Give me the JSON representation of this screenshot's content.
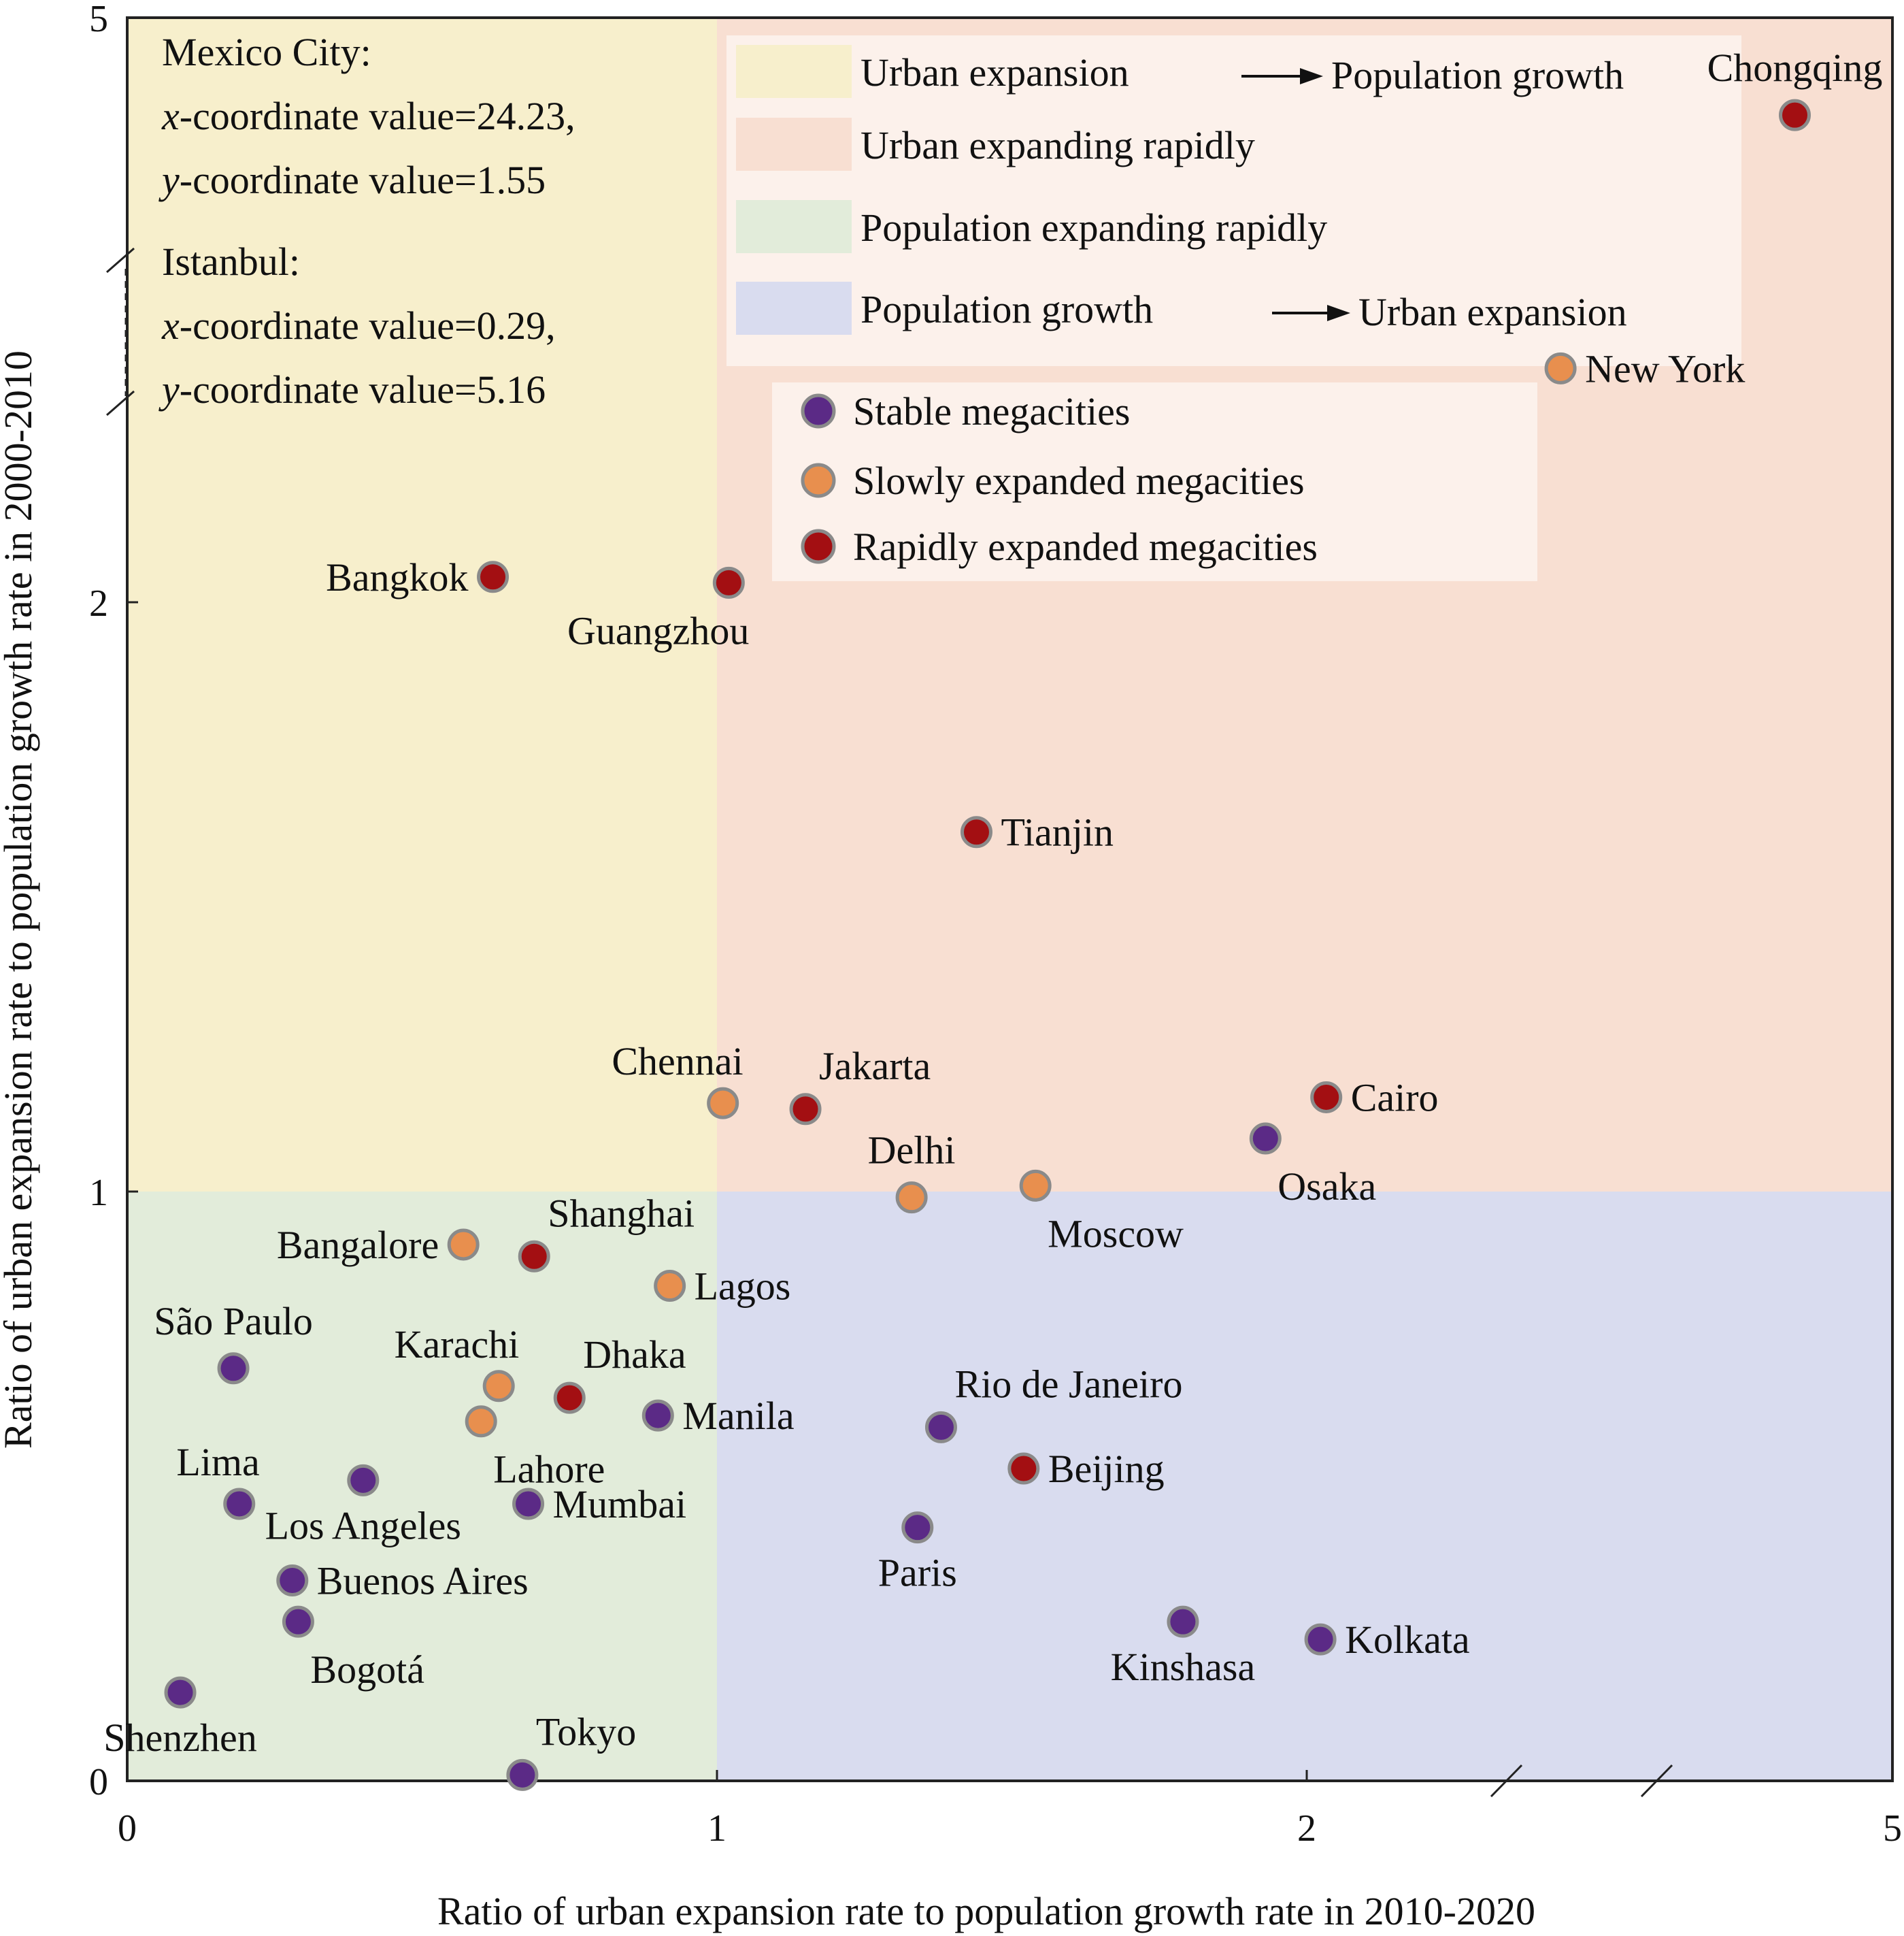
{
  "chart_data": {
    "type": "scatter",
    "xlabel": "Ratio of urban expansion rate to population growth rate in 2010-2020",
    "ylabel": "Ratio of urban expansion rate to population growth rate in 2000-2010",
    "x_ticks": [
      "0",
      "1",
      "2",
      "5"
    ],
    "y_ticks": [
      "0",
      "1",
      "2",
      "5"
    ],
    "xlim": [
      0,
      5
    ],
    "ylim": [
      0,
      5
    ],
    "axis_breaks": "broken axes: linear 0-2, compressed 2-5 on both axes",
    "quadrants": [
      {
        "name": "Urban expansion → Population growth",
        "x_range": [
          0,
          1
        ],
        "y_range": [
          1,
          5
        ],
        "color": "#f7efcc"
      },
      {
        "name": "Urban expanding rapidly",
        "x_range": [
          1,
          5
        ],
        "y_range": [
          1,
          5
        ],
        "color": "#f8dfd2"
      },
      {
        "name": "Population expanding rapidly",
        "x_range": [
          0,
          1
        ],
        "y_range": [
          0,
          1
        ],
        "color": "#e2ecda"
      },
      {
        "name": "Population growth → Urban expansion",
        "x_range": [
          1,
          5
        ],
        "y_range": [
          0,
          1
        ],
        "color": "#d9dcef"
      }
    ],
    "region_legend": [
      {
        "label": "Urban expansion",
        "arrow_to": "Population growth",
        "color": "#f7efcc"
      },
      {
        "label": "Urban expanding rapidly",
        "arrow_to": "",
        "color": "#f8dfd2"
      },
      {
        "label": "Population expanding rapidly",
        "arrow_to": "",
        "color": "#e2ecda"
      },
      {
        "label": "Population growth",
        "arrow_to": "Urban expansion",
        "color": "#d9dcef"
      }
    ],
    "groups": [
      {
        "name": "Stable megacities",
        "color": "#5b2a86"
      },
      {
        "name": "Slowly expanded megacities",
        "color": "#e88f4e"
      },
      {
        "name": "Rapidly expanded megacities",
        "color": "#a30f12"
      }
    ],
    "points": [
      {
        "city": "Chongqing",
        "x": 4.5,
        "y": 4.5,
        "group": 2,
        "label_pos": "above"
      },
      {
        "city": "New York",
        "x": 3.3,
        "y": 3.2,
        "group": 1,
        "label_pos": "right"
      },
      {
        "city": "Bangkok",
        "x": 0.62,
        "y": 2.13,
        "group": 2,
        "label_pos": "left"
      },
      {
        "city": "Guangzhou",
        "x": 1.02,
        "y": 2.1,
        "group": 2,
        "label_pos": "below-left"
      },
      {
        "city": "Tianjin",
        "x": 1.44,
        "y": 1.61,
        "group": 2,
        "label_pos": "right"
      },
      {
        "city": "Chennai",
        "x": 1.01,
        "y": 1.15,
        "group": 1,
        "label_pos": "above-left"
      },
      {
        "city": "Jakarta",
        "x": 1.15,
        "y": 1.14,
        "group": 2,
        "label_pos": "above-right"
      },
      {
        "city": "Cairo",
        "x": 2.1,
        "y": 1.16,
        "group": 2,
        "label_pos": "right"
      },
      {
        "city": "Osaka",
        "x": 1.93,
        "y": 1.09,
        "group": 0,
        "label_pos": "below-right"
      },
      {
        "city": "Delhi",
        "x": 1.33,
        "y": 0.99,
        "group": 1,
        "label_pos": "above"
      },
      {
        "city": "Moscow",
        "x": 1.54,
        "y": 1.01,
        "group": 1,
        "label_pos": "below-right"
      },
      {
        "city": "Bangalore",
        "x": 0.57,
        "y": 0.91,
        "group": 1,
        "label_pos": "left"
      },
      {
        "city": "Shanghai",
        "x": 0.69,
        "y": 0.89,
        "group": 2,
        "label_pos": "above-right"
      },
      {
        "city": "Lagos",
        "x": 0.92,
        "y": 0.84,
        "group": 1,
        "label_pos": "right"
      },
      {
        "city": "São Paulo",
        "x": 0.18,
        "y": 0.7,
        "group": 0,
        "label_pos": "above"
      },
      {
        "city": "Karachi",
        "x": 0.63,
        "y": 0.67,
        "group": 1,
        "label_pos": "above-left"
      },
      {
        "city": "Dhaka",
        "x": 0.75,
        "y": 0.65,
        "group": 2,
        "label_pos": "above-right"
      },
      {
        "city": "Manila",
        "x": 0.9,
        "y": 0.62,
        "group": 0,
        "label_pos": "right"
      },
      {
        "city": "Lahore",
        "x": 0.6,
        "y": 0.61,
        "group": 1,
        "label_pos": "below-right"
      },
      {
        "city": "Rio de Janeiro",
        "x": 1.38,
        "y": 0.6,
        "group": 0,
        "label_pos": "above-right"
      },
      {
        "city": "Beijing",
        "x": 1.52,
        "y": 0.53,
        "group": 2,
        "label_pos": "right"
      },
      {
        "city": "Los Angeles",
        "x": 0.4,
        "y": 0.51,
        "group": 0,
        "label_pos": "below"
      },
      {
        "city": "Lima",
        "x": 0.19,
        "y": 0.47,
        "group": 0,
        "label_pos": "above-left"
      },
      {
        "city": "Mumbai",
        "x": 0.68,
        "y": 0.47,
        "group": 0,
        "label_pos": "right"
      },
      {
        "city": "Paris",
        "x": 1.34,
        "y": 0.43,
        "group": 0,
        "label_pos": "below"
      },
      {
        "city": "Buenos Aires",
        "x": 0.28,
        "y": 0.34,
        "group": 0,
        "label_pos": "right"
      },
      {
        "city": "Bogotá",
        "x": 0.29,
        "y": 0.27,
        "group": 0,
        "label_pos": "below-right"
      },
      {
        "city": "Kinshasa",
        "x": 1.79,
        "y": 0.27,
        "group": 0,
        "label_pos": "below"
      },
      {
        "city": "Kolkata",
        "x": 2.07,
        "y": 0.24,
        "group": 0,
        "label_pos": "right"
      },
      {
        "city": "Shenzhen",
        "x": 0.09,
        "y": 0.15,
        "group": 0,
        "label_pos": "below"
      },
      {
        "city": "Tokyo",
        "x": 0.67,
        "y": 0.01,
        "group": 0,
        "label_pos": "above-right"
      }
    ],
    "annotations": [
      {
        "lines": [
          "Mexico City:",
          "x-coordinate value=24.23,",
          "y-coordinate value=1.55"
        ]
      },
      {
        "lines": [
          "Istanbul:",
          "x-coordinate value=0.29,",
          "y-coordinate value=5.16"
        ]
      }
    ]
  }
}
